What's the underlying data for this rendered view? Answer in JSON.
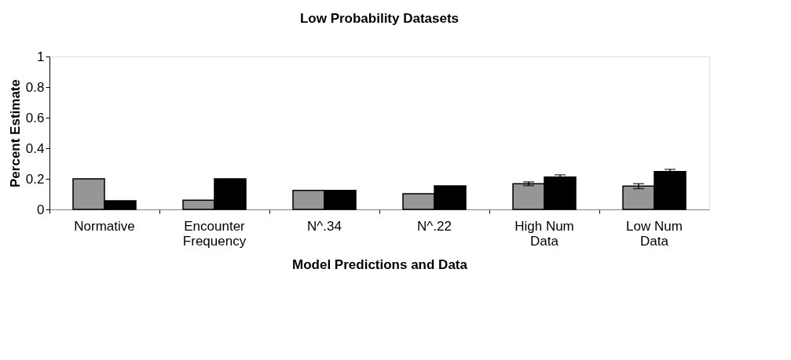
{
  "chart_data": {
    "type": "bar",
    "title": "Low Probability Datasets",
    "xlabel": "Model Predictions and Data",
    "ylabel": "Percent Estimate",
    "categories": [
      "Normative",
      "Encounter Frequency",
      "N^.34",
      "N^.22",
      "High Num Data",
      "Low Num Data"
    ],
    "series": [
      {
        "color": "#969696",
        "values": [
          0.2,
          0.06,
          0.125,
          0.103,
          0.168,
          0.152
        ],
        "errors": [
          null,
          null,
          null,
          null,
          0.012,
          0.016
        ]
      },
      {
        "color": "#000000",
        "values": [
          0.056,
          0.2,
          0.125,
          0.154,
          0.212,
          0.248
        ],
        "errors": [
          null,
          null,
          null,
          null,
          0.014,
          0.014
        ]
      }
    ],
    "ylim": [
      0,
      1
    ],
    "yticks": [
      0,
      0.2,
      0.4,
      0.6,
      0.8,
      1
    ],
    "grid": false
  }
}
